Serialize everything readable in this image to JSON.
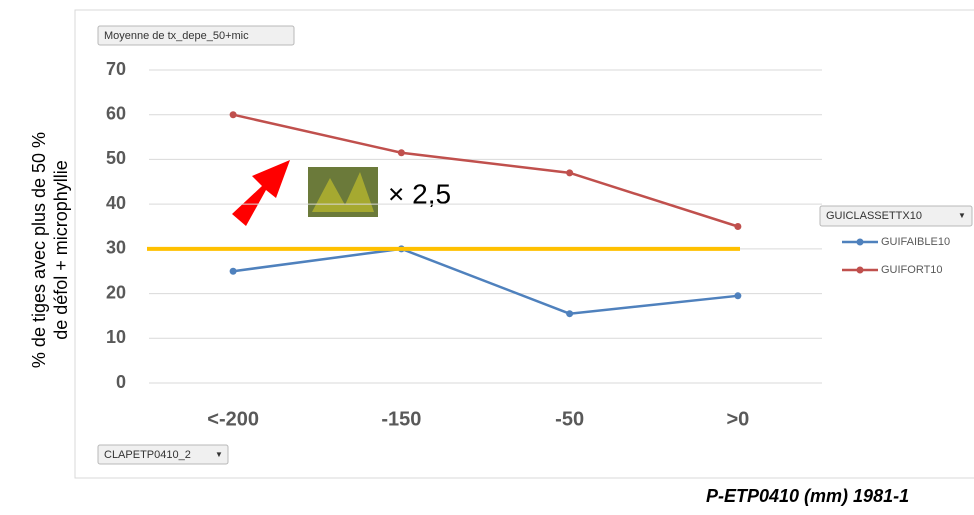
{
  "chart_data": {
    "type": "line",
    "field_button": "Moyenne de tx_depe_50+mic",
    "axis_button": "CLAPETP0410_2",
    "legend_button": "GUICLASSETTX10",
    "y_label_lines": [
      "% de tiges avec plus de 50 %",
      "de défol + microphyllie"
    ],
    "x_label": "P-ETP0410 (mm) 1981-1",
    "annotation": "× 2,5",
    "categories": [
      "<-200",
      "-150",
      "-50",
      ">0"
    ],
    "series": [
      {
        "name": "GUIFAIBLE10",
        "color": "#4f81bd",
        "values": [
          25,
          30,
          15.5,
          19.5
        ]
      },
      {
        "name": "GUIFORT10",
        "color": "#c0504d",
        "values": [
          60,
          51.5,
          47,
          35
        ]
      }
    ],
    "reference_line": {
      "value": 30,
      "color": "#ffc000"
    },
    "ylim": [
      0,
      70
    ],
    "yticks": [
      0,
      10,
      20,
      30,
      40,
      50,
      60,
      70
    ],
    "grid": true,
    "legend": "right"
  }
}
